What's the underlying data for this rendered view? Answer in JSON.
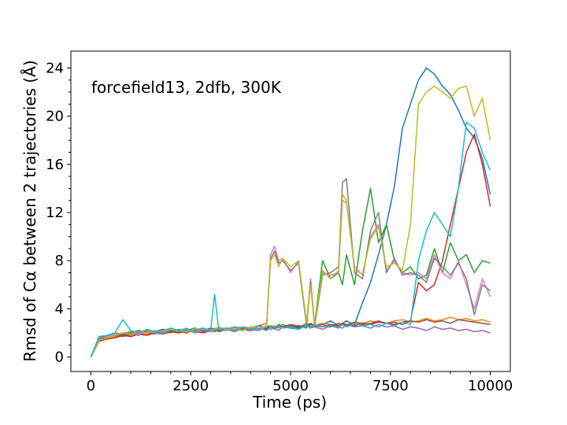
{
  "chart_data": {
    "type": "line",
    "title": "",
    "xlabel": "Time (ps)",
    "ylabel": "Rmsd of Cα between 2 trajectories (Å)",
    "annotation": "forcefield13, 2dfb, 300K",
    "xlim": [
      -500,
      10500
    ],
    "ylim": [
      -1.2,
      25.4
    ],
    "xticks": [
      0,
      2500,
      5000,
      7500,
      10000
    ],
    "yticks": [
      0,
      4,
      8,
      12,
      16,
      20,
      24
    ],
    "grid": false,
    "legend": "none",
    "x": [
      0,
      200,
      400,
      600,
      800,
      1000,
      1200,
      1400,
      1600,
      1800,
      2000,
      2200,
      2400,
      2600,
      2800,
      3000,
      3100,
      3200,
      3400,
      3600,
      3800,
      4000,
      4200,
      4400,
      4500,
      4600,
      4700,
      4800,
      5000,
      5200,
      5400,
      5500,
      5600,
      5800,
      6000,
      6200,
      6300,
      6400,
      6600,
      6800,
      7000,
      7200,
      7400,
      7600,
      7800,
      8000,
      8200,
      8400,
      8600,
      8800,
      9000,
      9200,
      9400,
      9600,
      9800,
      10000
    ],
    "series": [
      {
        "color": "#1f77b4",
        "values": [
          0,
          1.6,
          1.8,
          1.9,
          2.0,
          1.9,
          2.1,
          2.0,
          2.2,
          2.1,
          2.3,
          2.0,
          2.2,
          2.4,
          2.1,
          2.3,
          2.2,
          2.4,
          2.3,
          2.2,
          2.5,
          2.4,
          2.3,
          2.6,
          2.5,
          2.4,
          2.7,
          2.5,
          2.6,
          2.4,
          2.8,
          2.5,
          2.6,
          2.7,
          3.0,
          2.6,
          2.8,
          3.0,
          2.7,
          4.5,
          6.2,
          8.5,
          11.0,
          14.2,
          19.0,
          21.0,
          23.0,
          24.0,
          23.5,
          22.5,
          21.8,
          20.5,
          19.0,
          18.2,
          16.5,
          13.5
        ]
      },
      {
        "color": "#ff7f0e",
        "values": [
          0,
          1.4,
          1.6,
          1.7,
          1.9,
          1.8,
          2.0,
          1.9,
          2.1,
          2.0,
          2.2,
          2.1,
          2.0,
          2.3,
          2.2,
          2.1,
          2.3,
          2.2,
          2.4,
          2.3,
          2.2,
          2.5,
          2.4,
          2.3,
          2.5,
          2.6,
          2.4,
          2.5,
          2.7,
          2.6,
          2.5,
          2.7,
          2.6,
          2.8,
          2.7,
          2.6,
          2.8,
          2.7,
          2.9,
          2.8,
          3.0,
          2.9,
          2.8,
          3.0,
          3.1,
          2.9,
          3.0,
          3.2,
          3.0,
          3.1,
          3.3,
          3.1,
          3.2,
          3.0,
          3.1,
          2.9
        ]
      },
      {
        "color": "#2ca02c",
        "values": [
          0,
          1.5,
          1.7,
          1.8,
          1.7,
          1.9,
          2.0,
          2.1,
          1.9,
          2.2,
          2.0,
          2.3,
          2.1,
          2.2,
          2.4,
          2.2,
          2.3,
          2.1,
          2.4,
          2.3,
          2.2,
          2.5,
          2.3,
          2.4,
          2.6,
          2.4,
          2.5,
          2.7,
          2.5,
          2.6,
          2.4,
          6.5,
          2.7,
          8.0,
          6.5,
          7.0,
          6.0,
          8.5,
          6.0,
          10.5,
          14.0,
          9.5,
          11.0,
          8.0,
          7.0,
          7.5,
          6.5,
          6.8,
          9.0,
          7.0,
          9.5,
          8.0,
          8.5,
          7.0,
          8.0,
          7.8
        ]
      },
      {
        "color": "#d62728",
        "values": [
          0,
          1.3,
          1.5,
          1.6,
          1.8,
          1.7,
          1.9,
          1.8,
          2.0,
          1.9,
          2.1,
          2.0,
          2.2,
          2.1,
          2.0,
          2.2,
          2.1,
          2.3,
          2.2,
          2.4,
          2.3,
          2.2,
          2.4,
          2.3,
          2.5,
          2.4,
          2.6,
          2.5,
          2.4,
          2.6,
          2.5,
          2.7,
          2.6,
          2.5,
          2.7,
          2.6,
          2.8,
          2.7,
          2.6,
          2.8,
          2.7,
          2.9,
          2.8,
          2.7,
          2.9,
          3.0,
          6.2,
          5.5,
          6.0,
          8.0,
          11.0,
          14.0,
          17.0,
          18.5,
          16.0,
          12.5
        ]
      },
      {
        "color": "#9467bd",
        "values": [
          0,
          1.5,
          1.6,
          1.8,
          1.9,
          2.0,
          1.8,
          2.1,
          2.0,
          1.9,
          2.2,
          2.1,
          2.3,
          2.0,
          2.2,
          2.1,
          2.4,
          2.2,
          2.3,
          2.1,
          2.4,
          2.3,
          2.2,
          2.5,
          2.3,
          2.4,
          2.2,
          2.5,
          2.4,
          2.3,
          2.6,
          2.4,
          2.5,
          2.3,
          2.6,
          2.5,
          2.4,
          2.7,
          2.5,
          2.6,
          2.4,
          2.7,
          2.5,
          2.6,
          2.3,
          2.5,
          2.4,
          2.2,
          2.5,
          2.3,
          2.4,
          2.2,
          2.3,
          2.1,
          2.2,
          2.0
        ]
      },
      {
        "color": "#8c564b",
        "values": [
          0,
          1.4,
          1.7,
          1.9,
          1.8,
          2.0,
          2.2,
          2.0,
          2.1,
          2.3,
          2.1,
          2.2,
          2.0,
          2.3,
          2.2,
          2.4,
          2.3,
          2.1,
          2.3,
          2.5,
          2.3,
          2.4,
          2.6,
          2.4,
          2.5,
          2.3,
          2.6,
          2.5,
          2.7,
          2.5,
          2.6,
          2.8,
          2.6,
          2.7,
          2.5,
          2.8,
          2.7,
          2.6,
          2.9,
          2.7,
          2.8,
          3.0,
          2.8,
          2.9,
          2.7,
          3.0,
          2.9,
          3.1,
          2.9,
          3.0,
          2.8,
          3.1,
          3.0,
          2.9,
          2.8,
          2.7
        ]
      },
      {
        "color": "#e377c2",
        "values": [
          0,
          1.6,
          1.7,
          1.9,
          2.0,
          2.1,
          1.9,
          2.2,
          2.0,
          2.1,
          2.3,
          2.2,
          2.4,
          2.1,
          2.3,
          2.2,
          2.1,
          2.4,
          2.2,
          2.3,
          2.5,
          2.4,
          2.3,
          2.5,
          8.5,
          9.2,
          8.0,
          8.2,
          7.0,
          8.0,
          2.8,
          6.5,
          2.6,
          7.0,
          6.8,
          7.0,
          13.0,
          12.8,
          7.5,
          6.8,
          10.0,
          11.0,
          7.2,
          8.0,
          7.0,
          6.8,
          7.0,
          6.5,
          8.5,
          7.0,
          6.5,
          8.0,
          6.0,
          4.0,
          6.5,
          5.0
        ]
      },
      {
        "color": "#7f7f7f",
        "values": [
          0,
          1.5,
          1.8,
          2.0,
          1.9,
          2.1,
          2.0,
          2.2,
          2.1,
          2.0,
          2.3,
          2.1,
          2.2,
          2.4,
          2.2,
          2.3,
          2.1,
          2.4,
          2.3,
          2.5,
          2.4,
          2.3,
          2.6,
          2.8,
          8.2,
          8.8,
          7.8,
          8.0,
          7.2,
          7.8,
          2.6,
          6.2,
          2.5,
          6.8,
          7.0,
          7.5,
          14.5,
          14.8,
          7.0,
          6.5,
          10.5,
          12.0,
          7.0,
          8.2,
          6.8,
          7.0,
          6.8,
          6.2,
          8.2,
          7.5,
          6.8,
          7.8,
          6.5,
          3.5,
          6.0,
          5.5
        ]
      },
      {
        "color": "#bcbd22",
        "values": [
          0,
          1.4,
          1.6,
          1.8,
          2.0,
          1.9,
          2.1,
          2.0,
          2.2,
          2.1,
          2.3,
          2.2,
          2.1,
          2.3,
          2.4,
          2.2,
          2.3,
          2.5,
          2.3,
          2.4,
          2.2,
          2.5,
          2.4,
          2.6,
          8.0,
          8.5,
          7.5,
          8.2,
          7.5,
          8.0,
          2.9,
          6.0,
          2.7,
          7.2,
          6.5,
          7.2,
          13.5,
          13.0,
          7.2,
          6.9,
          9.8,
          10.8,
          7.5,
          7.8,
          7.2,
          11.0,
          21.0,
          22.0,
          22.5,
          22.0,
          21.5,
          22.3,
          22.5,
          20.0,
          21.5,
          18.0
        ]
      },
      {
        "color": "#17becf",
        "values": [
          0,
          1.7,
          1.8,
          2.0,
          3.1,
          2.2,
          2.0,
          2.3,
          2.1,
          2.2,
          2.4,
          2.2,
          2.3,
          2.1,
          2.4,
          2.2,
          5.2,
          2.3,
          2.4,
          2.2,
          2.5,
          2.3,
          2.4,
          2.2,
          2.5,
          2.3,
          2.6,
          2.4,
          2.5,
          2.3,
          2.6,
          2.4,
          2.7,
          2.5,
          2.6,
          2.4,
          2.7,
          2.5,
          2.8,
          2.6,
          2.7,
          2.5,
          2.8,
          2.6,
          2.9,
          2.7,
          8.0,
          10.5,
          12.0,
          11.0,
          10.0,
          14.0,
          19.5,
          19.0,
          17.0,
          15.5
        ]
      }
    ]
  }
}
